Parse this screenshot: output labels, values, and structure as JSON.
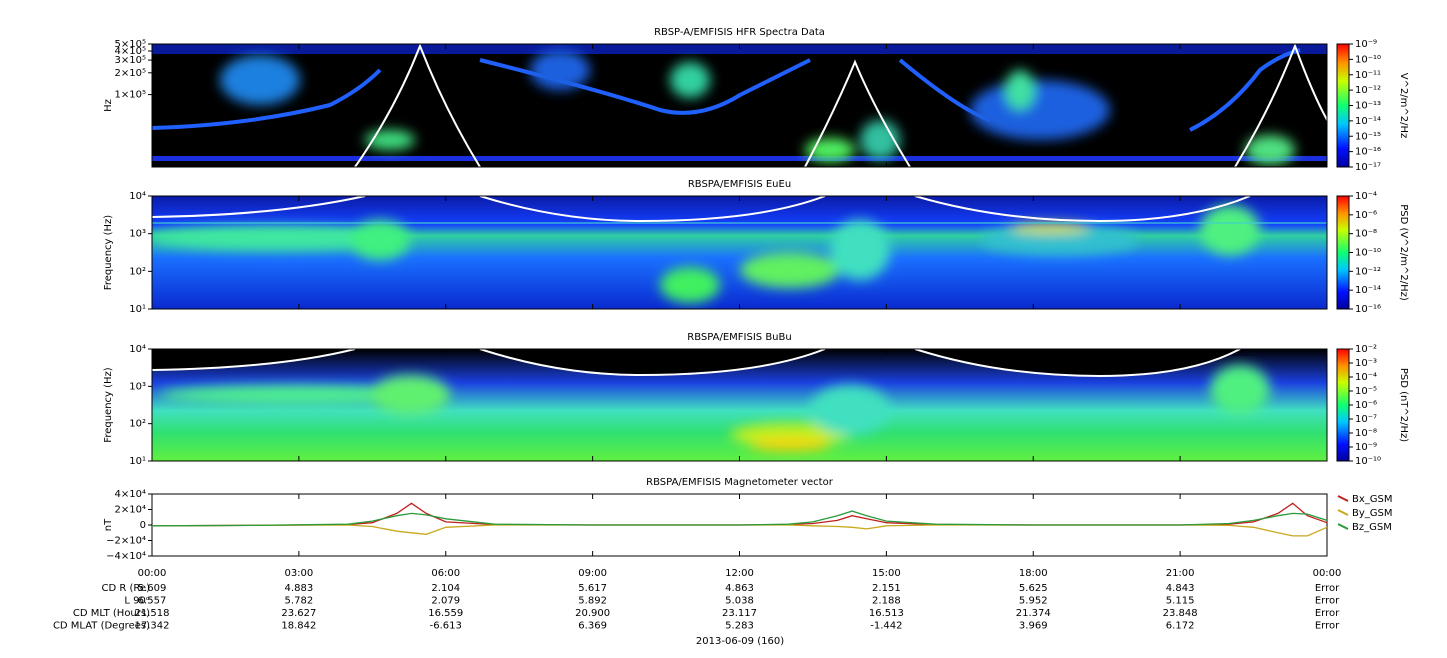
{
  "chart_data": [
    {
      "type": "spectrogram",
      "title": "RBSP-A/EMFISIS  HFR Spectra Data",
      "ylabel": "Hz",
      "ylog": true,
      "ylim": [
        10000,
        500000
      ],
      "yticks": [
        {
          "value": 100000,
          "label": "1×10⁵"
        },
        {
          "value": 200000,
          "label": "2×10⁵"
        },
        {
          "value": 300000,
          "label": "3×10⁵"
        },
        {
          "value": 400000,
          "label": "4×10⁵"
        },
        {
          "value": 500000,
          "label": "5×10⁵"
        }
      ],
      "colorbar": {
        "label": "V^2/m^2/Hz",
        "zlim": [
          1e-17,
          1e-09
        ],
        "zticks": [
          {
            "value": 1e-09,
            "label": "10⁻⁹"
          },
          {
            "value": 1e-10,
            "label": "10⁻¹⁰"
          },
          {
            "value": 1e-11,
            "label": "10⁻¹¹"
          },
          {
            "value": 1e-12,
            "label": "10⁻¹²"
          },
          {
            "value": 1e-13,
            "label": "10⁻¹³"
          },
          {
            "value": 1e-14,
            "label": "10⁻¹⁴"
          },
          {
            "value": 1e-15,
            "label": "10⁻¹⁵"
          },
          {
            "value": 1e-16,
            "label": "10⁻¹⁶"
          },
          {
            "value": 1e-17,
            "label": "10⁻¹⁷"
          }
        ]
      }
    },
    {
      "type": "spectrogram",
      "title": "RBSPA/EMFISIS  EuEu",
      "ylabel": "Frequency (Hz)",
      "ylog": true,
      "ylim": [
        10,
        10000
      ],
      "yticks": [
        {
          "value": 10,
          "label": "10¹"
        },
        {
          "value": 100,
          "label": "10²"
        },
        {
          "value": 1000,
          "label": "10³"
        },
        {
          "value": 10000,
          "label": "10⁴"
        }
      ],
      "colorbar": {
        "label": "PSD (V^2/m^2/Hz)",
        "zlim": [
          1e-16,
          0.0001
        ],
        "zticks": [
          {
            "value": 0.0001,
            "label": "10⁻⁴"
          },
          {
            "value": 1e-06,
            "label": "10⁻⁶"
          },
          {
            "value": 1e-08,
            "label": "10⁻⁸"
          },
          {
            "value": 1e-10,
            "label": "10⁻¹⁰"
          },
          {
            "value": 1e-12,
            "label": "10⁻¹²"
          },
          {
            "value": 1e-14,
            "label": "10⁻¹⁴"
          },
          {
            "value": 1e-16,
            "label": "10⁻¹⁶"
          }
        ]
      }
    },
    {
      "type": "spectrogram",
      "title": "RBSPA/EMFISIS  BuBu",
      "ylabel": "Frequency (Hz)",
      "ylog": true,
      "ylim": [
        10,
        10000
      ],
      "yticks": [
        {
          "value": 10,
          "label": "10¹"
        },
        {
          "value": 100,
          "label": "10²"
        },
        {
          "value": 1000,
          "label": "10³"
        },
        {
          "value": 10000,
          "label": "10⁴"
        }
      ],
      "colorbar": {
        "label": "PSD (nT^2/Hz)",
        "zlim": [
          1e-10,
          0.01
        ],
        "zticks": [
          {
            "value": 0.01,
            "label": "10⁻²"
          },
          {
            "value": 0.001,
            "label": "10⁻³"
          },
          {
            "value": 0.0001,
            "label": "10⁻⁴"
          },
          {
            "value": 1e-05,
            "label": "10⁻⁵"
          },
          {
            "value": 1e-06,
            "label": "10⁻⁶"
          },
          {
            "value": 1e-07,
            "label": "10⁻⁷"
          },
          {
            "value": 1e-08,
            "label": "10⁻⁸"
          },
          {
            "value": 1e-09,
            "label": "10⁻⁹"
          },
          {
            "value": 1e-10,
            "label": "10⁻¹⁰"
          }
        ]
      }
    },
    {
      "type": "line",
      "title": "RBSPA/EMFISIS  Magnetometer vector",
      "ylabel": "nT",
      "ylim": [
        -40000,
        40000
      ],
      "yticks": [
        {
          "value": 40000,
          "label": "4×10⁴"
        },
        {
          "value": 20000,
          "label": "2×10⁴"
        },
        0,
        {
          "value": -20000,
          "label": "−2×10⁴"
        },
        {
          "value": -40000,
          "label": "−4×10⁴"
        }
      ],
      "xlim": [
        0,
        24
      ],
      "xticks": [
        {
          "value": 0,
          "label": "00:00"
        },
        {
          "value": 3,
          "label": "03:00"
        },
        {
          "value": 6,
          "label": "06:00"
        },
        {
          "value": 9,
          "label": "09:00"
        },
        {
          "value": 12,
          "label": "12:00"
        },
        {
          "value": 15,
          "label": "15:00"
        },
        {
          "value": 18,
          "label": "18:00"
        },
        {
          "value": 21,
          "label": "21:00"
        },
        {
          "value": 24,
          "label": "00:00"
        }
      ],
      "x": [
        0,
        2,
        4,
        4.5,
        5,
        5.3,
        5.6,
        6,
        7,
        9,
        12,
        13,
        13.5,
        14,
        14.3,
        14.6,
        15,
        16,
        18,
        21,
        22,
        22.5,
        23,
        23.3,
        23.6,
        24
      ],
      "series": [
        {
          "name": "Bx_GSM",
          "color": "#c0201c",
          "values": [
            -1000,
            -500,
            500,
            3000,
            15000,
            28000,
            15000,
            4000,
            500,
            0,
            0,
            500,
            2000,
            6000,
            12000,
            8000,
            3000,
            500,
            0,
            0,
            1000,
            4000,
            15000,
            28000,
            12000,
            3000
          ]
        },
        {
          "name": "By_GSM",
          "color": "#c8a81c",
          "values": [
            -1000,
            -500,
            0,
            -2000,
            -8000,
            -10000,
            -12000,
            -3000,
            0,
            0,
            0,
            0,
            -1000,
            -2000,
            -3000,
            -5000,
            -1000,
            0,
            0,
            0,
            -500,
            -3000,
            -10000,
            -14000,
            -14000,
            -3000
          ]
        },
        {
          "name": "Bz_GSM",
          "color": "#2a9a3a",
          "values": [
            -1000,
            -500,
            1000,
            5000,
            12000,
            15000,
            13000,
            8000,
            1000,
            0,
            0,
            1000,
            4000,
            12000,
            18000,
            12000,
            5000,
            1000,
            0,
            0,
            2000,
            6000,
            12000,
            15000,
            14000,
            6000
          ]
        }
      ]
    }
  ],
  "ephemeris": {
    "row_labels": [
      "CD R (Re)",
      "L 90ᵒ",
      "CD MLT (Hours)",
      "CD MLAT (Degrees)"
    ],
    "rows": [
      [
        "5.609",
        "4.883",
        "2.104",
        "5.617",
        "4.863",
        "2.151",
        "5.625",
        "4.843",
        "Error"
      ],
      [
        "6.557",
        "5.782",
        "2.079",
        "5.892",
        "5.038",
        "2.188",
        "5.952",
        "5.115",
        "Error"
      ],
      [
        "21.518",
        "23.627",
        "16.559",
        "20.900",
        "23.117",
        "16.513",
        "21.374",
        "23.848",
        "Error"
      ],
      [
        "17.342",
        "18.842",
        "-6.613",
        "6.369",
        "5.283",
        "-1.442",
        "3.969",
        "6.172",
        "Error"
      ]
    ],
    "date": "2013-06-09 (160)"
  }
}
